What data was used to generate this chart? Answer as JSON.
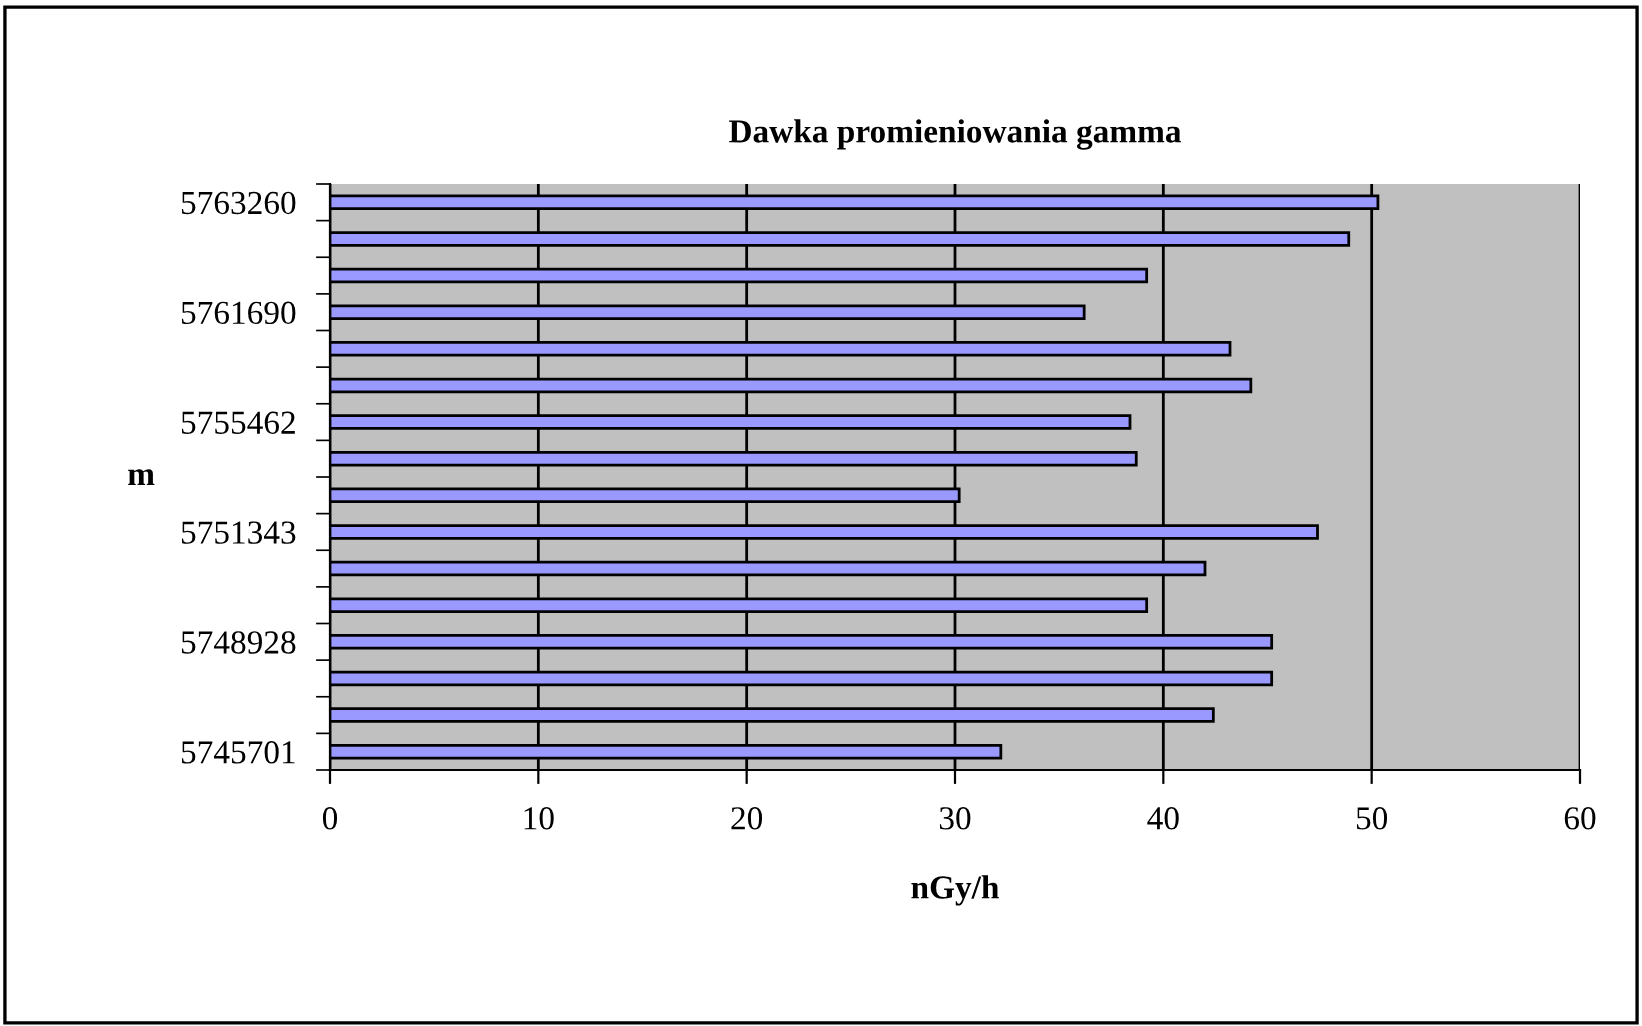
{
  "chart_data": {
    "type": "bar",
    "orientation": "horizontal",
    "title": "Dawka promieniowania gamma",
    "xlabel": "nGy/h",
    "ylabel": "m",
    "categories": [
      "5763260",
      null,
      null,
      "5761690",
      null,
      null,
      "5755462",
      null,
      null,
      "5751343",
      null,
      null,
      "5748928",
      null,
      null,
      "5745701"
    ],
    "values": [
      50.3,
      48.9,
      39.2,
      36.2,
      43.2,
      44.2,
      38.4,
      38.7,
      30.2,
      47.4,
      42.0,
      39.2,
      45.2,
      45.2,
      42.4,
      32.2
    ],
    "color": "#9999ff",
    "xlim": [
      0,
      60
    ],
    "xticks": [
      0,
      10,
      20,
      30,
      40,
      50,
      60
    ],
    "grid": "x",
    "legend": false
  }
}
